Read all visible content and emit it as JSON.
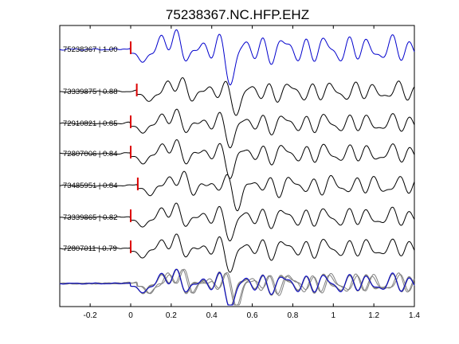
{
  "chart_data": {
    "type": "line",
    "title": "75238367.NC.HFP.EHZ",
    "xlabel": "",
    "ylabel": "",
    "xlim": [
      -0.35,
      1.4
    ],
    "xticks": [
      -0.2,
      0,
      0.2,
      0.4,
      0.6,
      0.8,
      1,
      1.2,
      1.4
    ],
    "xtick_labels": [
      "-0.2",
      "0",
      "0.2",
      "0.4",
      "0.6",
      "0.8",
      "1",
      "1.2",
      "1.4"
    ],
    "grid": false,
    "legend": "none",
    "colors": {
      "master": "#0000cc",
      "trace": "#000000",
      "overlay": "#808080",
      "pick": "#dd0000"
    },
    "series": [
      {
        "label": "75238367 | 1.00",
        "pick": 0.0,
        "master": true
      },
      {
        "label": "73339875 | 0.88",
        "pick": 0.03,
        "master": false
      },
      {
        "label": "72910821 | 0.85",
        "pick": 0.0,
        "master": false
      },
      {
        "label": "72807006 | 0.84",
        "pick": 0.0,
        "master": false
      },
      {
        "label": "73485951 | 0.84",
        "pick": 0.035,
        "master": false
      },
      {
        "label": "73339865 | 0.82",
        "pick": 0.0,
        "master": false
      },
      {
        "label": "72807011 | 0.79",
        "pick": 0.0,
        "master": false
      }
    ],
    "stack_panel": true
  }
}
